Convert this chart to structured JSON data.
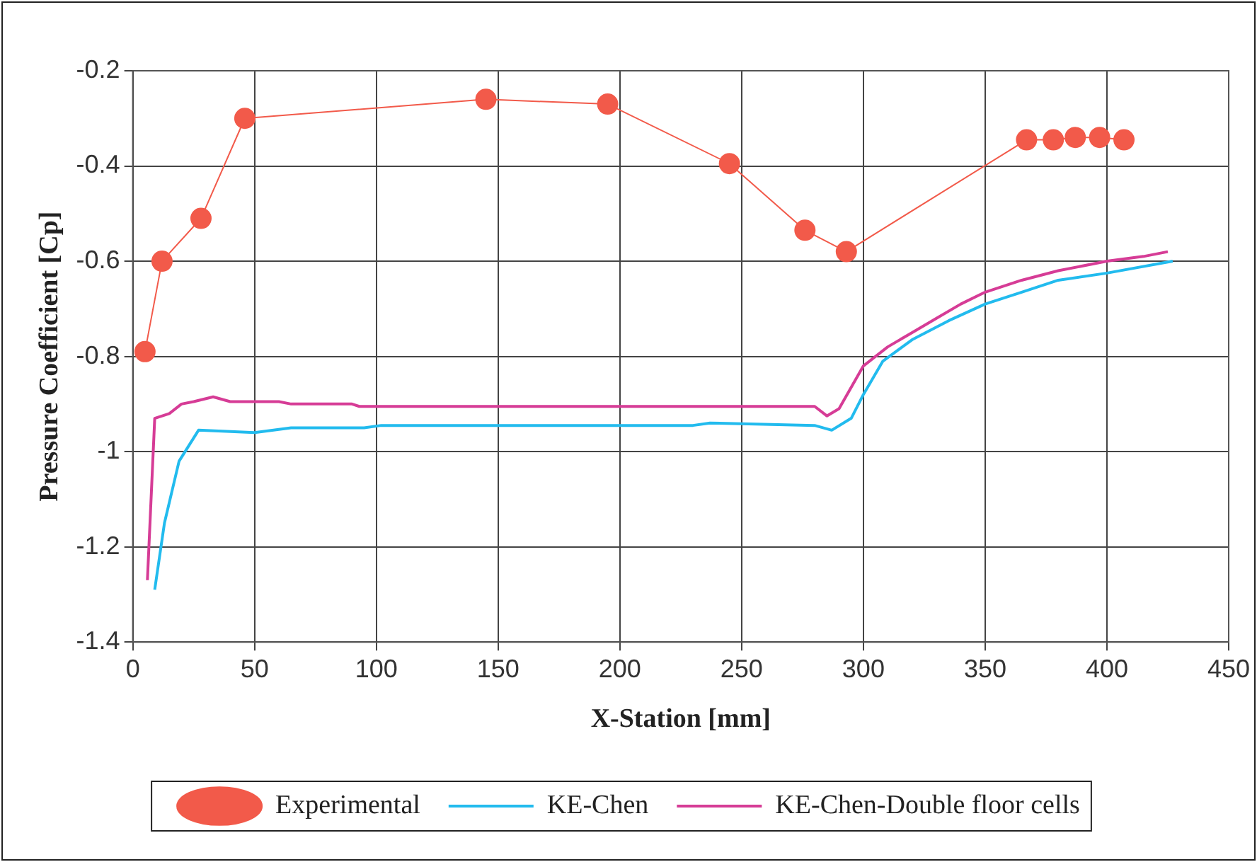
{
  "chart_data": {
    "type": "line",
    "xlabel": "X-Station [mm]",
    "ylabel": "Pressure Coefficient [Cp]",
    "xlim": [
      0,
      450
    ],
    "xticks": [
      0,
      50,
      100,
      150,
      200,
      250,
      300,
      350,
      400,
      450
    ],
    "ylim": [
      -1.4,
      -0.2
    ],
    "yticks": [
      -1.4,
      -1.2,
      -1,
      -0.8,
      -0.6,
      -0.4,
      -0.2
    ],
    "grid": true,
    "legend": "bottom",
    "series": [
      {
        "name": "Experimental",
        "color": "#f25a4a",
        "marker": "circle",
        "x": [
          5,
          12,
          28,
          46,
          145,
          195,
          245,
          276,
          293,
          367,
          378,
          387,
          397,
          407
        ],
        "values": [
          -0.79,
          -0.6,
          -0.51,
          -0.3,
          -0.26,
          -0.27,
          -0.395,
          -0.535,
          -0.58,
          -0.345,
          -0.345,
          -0.34,
          -0.34,
          -0.345
        ]
      },
      {
        "name": "KE-Chen",
        "color": "#22bbee",
        "marker": "none",
        "x": [
          9,
          13,
          19,
          27,
          50,
          65,
          95,
          102,
          230,
          237,
          280,
          287,
          295,
          300,
          308,
          320,
          335,
          350,
          365,
          380,
          400,
          427
        ],
        "values": [
          -1.29,
          -1.15,
          -1.02,
          -0.955,
          -0.96,
          -0.95,
          -0.95,
          -0.945,
          -0.945,
          -0.94,
          -0.945,
          -0.955,
          -0.93,
          -0.88,
          -0.81,
          -0.765,
          -0.725,
          -0.69,
          -0.665,
          -0.64,
          -0.625,
          -0.6
        ]
      },
      {
        "name": "KE-Chen-Double floor cells",
        "color": "#d63c96",
        "marker": "none",
        "x": [
          6,
          9,
          15,
          20,
          25,
          33,
          40,
          60,
          65,
          90,
          93,
          280,
          285,
          290,
          300,
          310,
          320,
          330,
          340,
          350,
          365,
          380,
          400,
          415,
          425
        ],
        "values": [
          -1.27,
          -0.93,
          -0.92,
          -0.9,
          -0.895,
          -0.885,
          -0.895,
          -0.895,
          -0.9,
          -0.9,
          -0.905,
          -0.905,
          -0.925,
          -0.91,
          -0.82,
          -0.78,
          -0.75,
          -0.72,
          -0.69,
          -0.665,
          -0.64,
          -0.62,
          -0.6,
          -0.59,
          -0.58
        ]
      }
    ]
  }
}
